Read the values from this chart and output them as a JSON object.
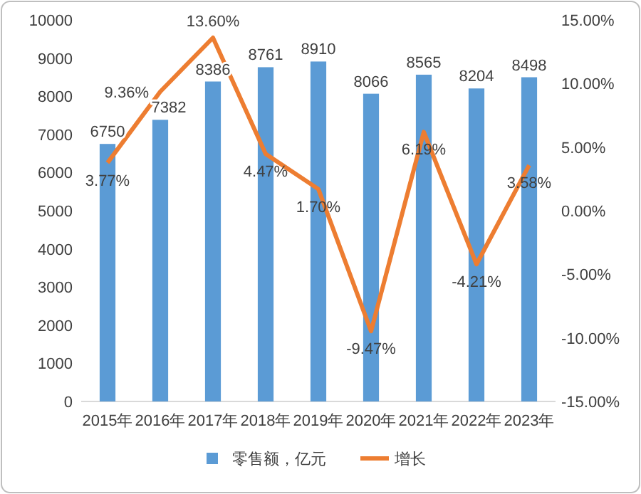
{
  "chart_data": {
    "type": "bar",
    "categories": [
      "2015年",
      "2016年",
      "2017年",
      "2018年",
      "2019年",
      "2020年",
      "2021年",
      "2022年",
      "2023年"
    ],
    "ylim": [
      0,
      10000
    ],
    "yticks": [
      0,
      1000,
      2000,
      3000,
      4000,
      5000,
      6000,
      7000,
      8000,
      9000,
      10000
    ],
    "y2lim": [
      -15,
      15
    ],
    "y2ticks": [
      {
        "value": -15,
        "label": "-15.00%"
      },
      {
        "value": -10,
        "label": "-10.00%"
      },
      {
        "value": -5,
        "label": "-5.00%"
      },
      {
        "value": 0,
        "label": "0.00%"
      },
      {
        "value": 5,
        "label": "5.00%"
      },
      {
        "value": 10,
        "label": "10.00%"
      },
      {
        "value": 15,
        "label": "15.00%"
      }
    ],
    "legend": "bottom",
    "grid": false,
    "data_labels": true,
    "series": [
      {
        "name": "零售额，亿元",
        "color": "#5b9bd5",
        "values": [
          6750,
          7382,
          8386,
          8761,
          8910,
          8066,
          8565,
          8204,
          8498
        ]
      },
      {
        "name": "增长",
        "type": "line",
        "axis": "y2",
        "color": "#ed7d31",
        "marker": "none",
        "line_style": "solid",
        "values": [
          3.77,
          9.36,
          13.6,
          4.47,
          1.7,
          -9.47,
          6.19,
          -4.21,
          3.58
        ],
        "value_labels": [
          "3.77%",
          "9.36%",
          "13.60%",
          "4.47%",
          "1.70%",
          "-9.47%",
          "6.19%",
          "-4.21%",
          "3.58%"
        ]
      }
    ]
  }
}
